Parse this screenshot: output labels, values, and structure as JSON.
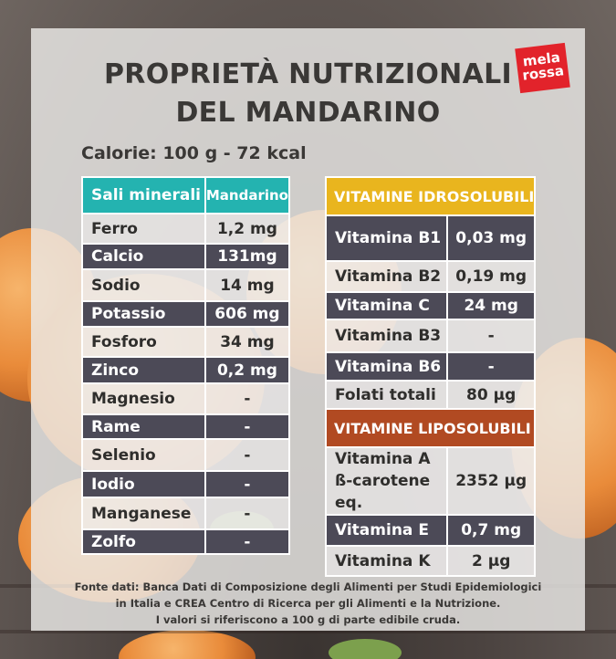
{
  "title": {
    "line1": "PROPRIETÀ NUTRIZIONALI",
    "line2": "DEL MANDARINO"
  },
  "logo": {
    "line1": "mela",
    "line2": "rossa"
  },
  "calories": "Calorie: 100 g - 72 kcal",
  "minerals": {
    "header": {
      "name": "Sali minerali",
      "value": "Mandarino"
    },
    "rows": [
      {
        "name": "Ferro",
        "value": "1,2 mg"
      },
      {
        "name": "Calcio",
        "value": "131mg"
      },
      {
        "name": "Sodio",
        "value": "14 mg"
      },
      {
        "name": "Potassio",
        "value": "606 mg"
      },
      {
        "name": "Fosforo",
        "value": "34 mg"
      },
      {
        "name": "Zinco",
        "value": "0,2  mg"
      },
      {
        "name": "Magnesio",
        "value": "-"
      },
      {
        "name": "Rame",
        "value": "-"
      },
      {
        "name": "Selenio",
        "value": "-"
      },
      {
        "name": "Iodio",
        "value": "-"
      },
      {
        "name": "Manganese",
        "value": "-"
      },
      {
        "name": "Zolfo",
        "value": "-"
      }
    ]
  },
  "water_soluble": {
    "header": "VITAMINE IDROSOLUBILI",
    "rows": [
      {
        "name": "Vitamina B1",
        "value": "0,03 mg"
      },
      {
        "name": "Vitamina B2",
        "value": "0,19 mg"
      },
      {
        "name": "Vitamina C",
        "value": "24 mg"
      },
      {
        "name": "Vitamina B3",
        "value": "-"
      },
      {
        "name": "Vitamina B6",
        "value": "-"
      },
      {
        "name": "Folati totali",
        "value": "80 µg"
      }
    ]
  },
  "fat_soluble": {
    "header": "VITAMINE LIPOSOLUBILI",
    "rows": [
      {
        "name": "Vitamina A ß-carotene eq.",
        "value": "2352 µg"
      },
      {
        "name": "Vitamina E",
        "value": "0,7 mg"
      },
      {
        "name": "Vitamina K",
        "value": "2 µg"
      }
    ]
  },
  "footer": {
    "line1": "Fonte dati: Banca Dati di Composizione degli Alimenti per Studi Epidemiologici",
    "line2": "in Italia e CREA Centro di Ricerca per gli Alimenti e la Nutrizione.",
    "line3": "I valori si riferiscono a 100 g di parte edibile cruda."
  },
  "colors": {
    "minerals_header": "#24b3b0",
    "water_soluble_header": "#e9b51e",
    "fat_soluble_header": "#b14a22",
    "dark_row": "#4c4a57",
    "logo": "#e2232b"
  }
}
